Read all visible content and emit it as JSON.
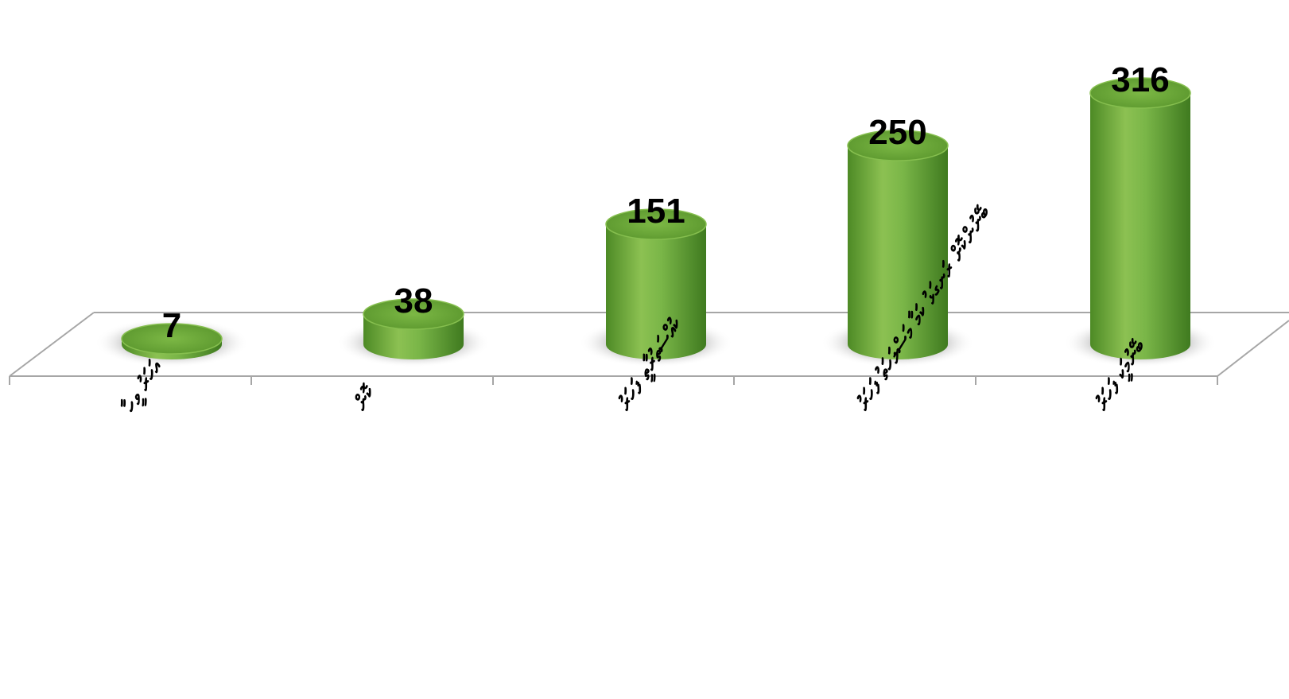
{
  "chart_data": {
    "type": "bar",
    "style": "3d-cylinder",
    "title": "",
    "xlabel": "",
    "ylabel": "",
    "ylim": [
      0,
      330
    ],
    "grid": false,
    "legend": "none",
    "categories": [
      "އަހަރު ވީހާ",
      "ކޮން",
      "ކުއްސަތުރާތީ ފަހަރު",
      "ބޭނުންކޮށް ރަނގަޅު ކަމާ މަސްލަހަތު ފަހަރު",
      "ބޭނުމަކީ ފަހަރު"
    ],
    "values": [
      7,
      38,
      151,
      250,
      316
    ],
    "value_labels": [
      "7",
      "38",
      "151",
      "250",
      "316"
    ],
    "colors": {
      "bar_light": "#8cc152",
      "bar_mid": "#6aa83a",
      "bar_dark": "#3f7a1f",
      "bar_top": "#5c9a30",
      "floor_line": "#a6a6a6",
      "shadow": "#7f7f7f"
    }
  }
}
